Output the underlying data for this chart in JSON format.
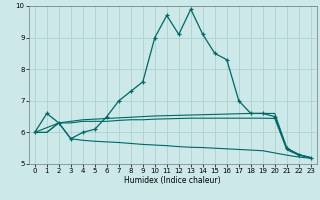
{
  "xlabel": "Humidex (Indice chaleur)",
  "background_color": "#cce8e8",
  "grid_color": "#aacccc",
  "line_color": "#006666",
  "xlim": [
    -0.5,
    23.5
  ],
  "ylim": [
    5,
    10
  ],
  "xticks": [
    0,
    1,
    2,
    3,
    4,
    5,
    6,
    7,
    8,
    9,
    10,
    11,
    12,
    13,
    14,
    15,
    16,
    17,
    18,
    19,
    20,
    21,
    22,
    23
  ],
  "yticks": [
    5,
    6,
    7,
    8,
    9,
    10
  ],
  "line_max_x": [
    0,
    1,
    2,
    3,
    4,
    5,
    6,
    7,
    8,
    9,
    10,
    11,
    12,
    13,
    14,
    15,
    16,
    17,
    18,
    19,
    20,
    21,
    22,
    23
  ],
  "line_max_y": [
    6.0,
    6.6,
    6.3,
    5.8,
    6.0,
    6.1,
    6.5,
    7.0,
    7.3,
    7.6,
    9.0,
    9.7,
    9.1,
    9.9,
    9.1,
    8.5,
    8.3,
    7.0,
    6.6,
    6.6,
    6.5,
    5.5,
    5.3,
    5.2
  ],
  "line_q3_x": [
    0,
    2,
    3,
    4,
    5,
    6,
    7,
    8,
    9,
    10,
    11,
    12,
    13,
    14,
    15,
    16,
    17,
    18,
    19,
    20,
    21,
    22,
    23
  ],
  "line_q3_y": [
    6.0,
    6.3,
    6.35,
    6.4,
    6.42,
    6.44,
    6.46,
    6.48,
    6.5,
    6.52,
    6.53,
    6.54,
    6.55,
    6.56,
    6.57,
    6.58,
    6.59,
    6.6,
    6.6,
    6.6,
    5.5,
    5.3,
    5.2
  ],
  "line_med_x": [
    0,
    1,
    2,
    3,
    4,
    5,
    6,
    7,
    8,
    9,
    10,
    11,
    12,
    13,
    14,
    15,
    16,
    17,
    18,
    19,
    20,
    21,
    22,
    23
  ],
  "line_med_y": [
    6.0,
    6.0,
    6.3,
    6.3,
    6.35,
    6.35,
    6.35,
    6.38,
    6.4,
    6.4,
    6.42,
    6.43,
    6.44,
    6.45,
    6.45,
    6.45,
    6.45,
    6.45,
    6.45,
    6.45,
    6.44,
    5.45,
    5.28,
    5.2
  ],
  "line_min_x": [
    0,
    1,
    2,
    3,
    4,
    5,
    6,
    7,
    8,
    9,
    10,
    11,
    12,
    13,
    14,
    15,
    16,
    17,
    18,
    19,
    20,
    21,
    22,
    23
  ],
  "line_min_y": [
    6.0,
    6.0,
    6.3,
    5.8,
    5.75,
    5.72,
    5.7,
    5.68,
    5.65,
    5.62,
    5.6,
    5.58,
    5.55,
    5.53,
    5.52,
    5.5,
    5.48,
    5.46,
    5.44,
    5.42,
    5.35,
    5.28,
    5.22,
    5.18
  ]
}
